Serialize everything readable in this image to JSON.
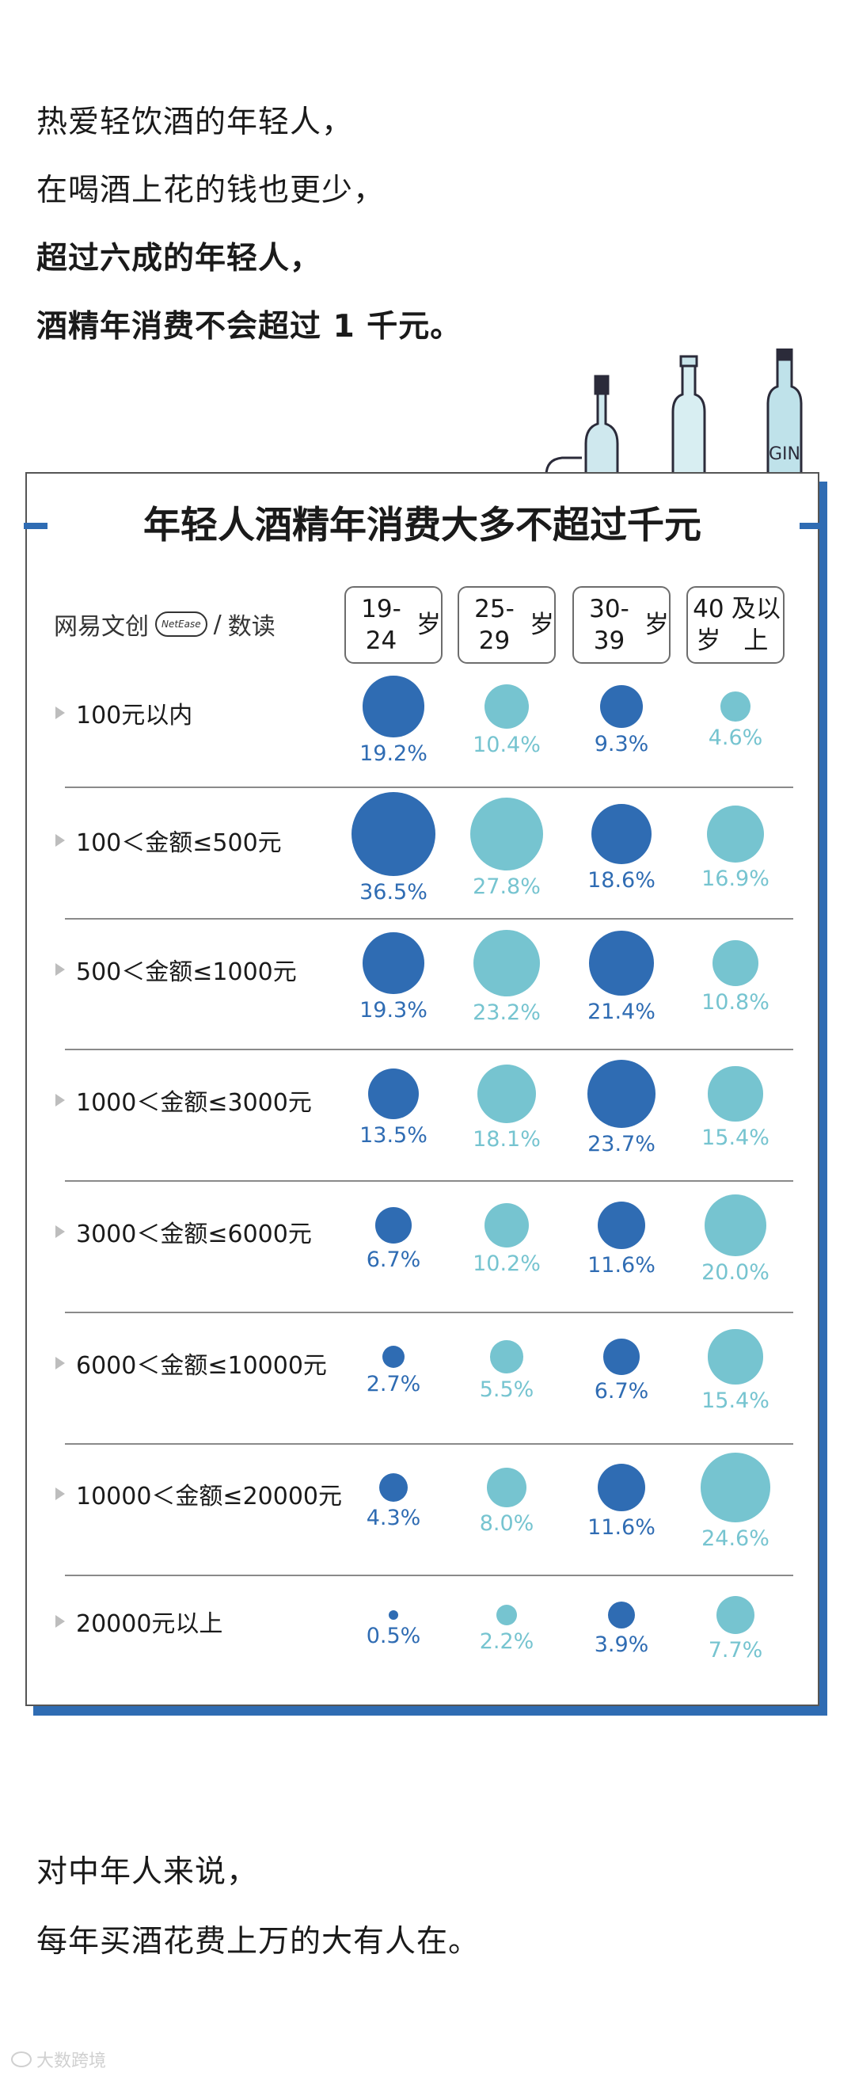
{
  "intro": {
    "lines": [
      "热爱轻饮酒的年轻人，",
      "在喝酒上花的钱也更少，",
      "超过六成的年轻人，",
      "酒精年消费不会超过 1 千元。"
    ]
  },
  "brand": {
    "cn": "网易文创",
    "badge": "NetEase",
    "sep": "/",
    "suffix": "数读"
  },
  "chart_data": {
    "type": "bubble-table",
    "title": "年轻人酒精年消费大多不超过千元",
    "columns": [
      "19-24\n岁",
      "25-29\n岁",
      "30-39\n岁",
      "40岁\n及以上"
    ],
    "column_colors": [
      "#2f6cb3",
      "#76c4d0",
      "#2f6cb3",
      "#76c4d0"
    ],
    "rows": [
      {
        "label": "100元以内",
        "values": [
          19.2,
          10.4,
          9.3,
          4.6
        ],
        "display": [
          "19.2%",
          "10.4%",
          "9.3%",
          "4.6%"
        ]
      },
      {
        "label": "100＜金额≤500元",
        "values": [
          36.5,
          27.8,
          18.6,
          16.9
        ],
        "display": [
          "36.5%",
          "27.8%",
          "18.6%",
          "16.9%"
        ]
      },
      {
        "label": "500＜金额≤1000元",
        "values": [
          19.3,
          23.2,
          21.4,
          10.8
        ],
        "display": [
          "19.3%",
          "23.2%",
          "21.4%",
          "10.8%"
        ]
      },
      {
        "label": "1000＜金额≤3000元",
        "values": [
          13.5,
          18.1,
          23.7,
          15.4
        ],
        "display": [
          "13.5%",
          "18.1%",
          "23.7%",
          "15.4%"
        ]
      },
      {
        "label": "3000＜金额≤6000元",
        "values": [
          6.7,
          10.2,
          11.6,
          20.0
        ],
        "display": [
          "6.7%",
          "10.2%",
          "11.6%",
          "20.0%"
        ]
      },
      {
        "label": "6000＜金额≤10000元",
        "values": [
          2.7,
          5.5,
          6.7,
          15.4
        ],
        "display": [
          "2.7%",
          "5.5%",
          "6.7%",
          "15.4%"
        ]
      },
      {
        "label": "10000＜金额≤20000元",
        "values": [
          4.3,
          8.0,
          11.6,
          24.6
        ],
        "display": [
          "4.3%",
          "8.0%",
          "11.6%",
          "24.6%"
        ]
      },
      {
        "label": "20000元以上",
        "values": [
          0.5,
          2.2,
          3.9,
          7.7
        ],
        "display": [
          "0.5%",
          "2.2%",
          "3.9%",
          "7.7%"
        ]
      }
    ]
  },
  "outro": {
    "lines": [
      "对中年人来说，",
      "每年买酒花费上万的大有人在。"
    ]
  },
  "watermark": {
    "text": "大数跨境"
  },
  "colors": {
    "dark_blue": "#2f6cb3",
    "light_teal": "#76c4d0",
    "accent": "#2f6cb3"
  }
}
